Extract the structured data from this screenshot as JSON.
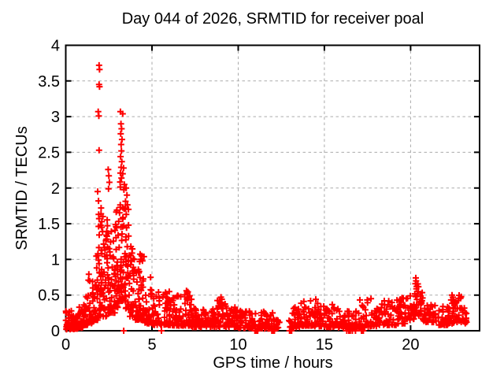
{
  "chart_data": {
    "type": "scatter",
    "title": "Day 044 of 2026, SRMTID for receiver poal",
    "xlabel": "GPS time / hours",
    "ylabel": "SRMTID / TECUs",
    "xlim": [
      0,
      24
    ],
    "ylim": [
      0,
      4
    ],
    "xticks": [
      0,
      5,
      10,
      15,
      20
    ],
    "yticks": [
      0,
      0.5,
      1,
      1.5,
      2,
      2.5,
      3,
      3.5,
      4
    ],
    "grid": "dashed",
    "legend_position": "none",
    "marker": "plus",
    "marker_color": "#ff0000",
    "grid_color": "#ababab",
    "axis_color": "#000000",
    "background_color": "#ffffff",
    "outlier_points": [
      [
        1.93,
        3.72
      ],
      [
        1.96,
        3.66
      ],
      [
        1.93,
        3.45
      ],
      [
        1.96,
        3.42
      ],
      [
        1.88,
        3.07
      ],
      [
        1.92,
        3.01
      ],
      [
        1.93,
        2.53
      ],
      [
        1.85,
        1.95
      ],
      [
        1.9,
        1.82
      ],
      [
        2.05,
        1.72
      ],
      [
        2.15,
        1.6
      ],
      [
        2.46,
        2.26
      ],
      [
        2.5,
        2.17
      ],
      [
        2.53,
        2.08
      ],
      [
        2.48,
        1.99
      ],
      [
        3.17,
        3.07
      ],
      [
        3.3,
        3.04
      ],
      [
        3.2,
        2.9
      ],
      [
        3.24,
        2.83
      ],
      [
        3.19,
        2.76
      ],
      [
        3.26,
        2.68
      ],
      [
        3.21,
        2.61
      ],
      [
        3.23,
        2.52
      ],
      [
        3.18,
        2.44
      ],
      [
        3.25,
        2.37
      ],
      [
        3.21,
        2.29
      ],
      [
        3.17,
        2.21
      ],
      [
        3.23,
        2.14
      ],
      [
        3.3,
        2.2
      ],
      [
        3.35,
        2.28
      ],
      [
        3.4,
        2.05
      ],
      [
        3.5,
        2.0
      ],
      [
        3.55,
        1.9
      ],
      [
        4.35,
        1.0
      ],
      [
        4.4,
        1.05
      ],
      [
        4.45,
        0.98
      ],
      [
        5.8,
        0.52
      ],
      [
        6.0,
        0.55
      ],
      [
        6.45,
        0.48
      ],
      [
        7.0,
        0.56
      ],
      [
        7.05,
        0.52
      ],
      [
        8.9,
        0.42
      ],
      [
        9.0,
        0.47
      ],
      [
        9.05,
        0.44
      ],
      [
        14.5,
        0.44
      ],
      [
        17.7,
        0.45
      ],
      [
        19.4,
        0.44
      ],
      [
        19.5,
        0.46
      ],
      [
        20.28,
        0.66
      ],
      [
        20.3,
        0.74
      ],
      [
        20.32,
        0.7
      ],
      [
        20.35,
        0.62
      ],
      [
        22.4,
        0.5
      ],
      [
        22.45,
        0.47
      ],
      [
        0.02,
        0.25
      ]
    ],
    "zero_value_times": [
      3.36,
      5.55,
      10.97,
      11.02,
      11.08,
      11.13,
      11.95,
      12.0,
      12.05,
      12.1,
      12.98,
      13.04,
      13.1,
      16.3,
      16.42,
      16.5,
      16.62,
      16.8,
      17.15,
      17.2,
      17.26
    ],
    "density_bands_format": "[x_start, x_end, point_count, y_min, y_max, skew_toward_min]",
    "density_bands": [
      [
        0.0,
        0.35,
        28,
        0.02,
        0.28,
        2.2
      ],
      [
        0.35,
        0.7,
        30,
        0.02,
        0.22,
        2.0
      ],
      [
        0.7,
        1.0,
        26,
        0.04,
        0.35,
        2.0
      ],
      [
        1.0,
        1.3,
        26,
        0.08,
        0.5,
        2.0
      ],
      [
        1.3,
        1.6,
        26,
        0.1,
        0.8,
        2.0
      ],
      [
        1.6,
        1.9,
        30,
        0.15,
        1.1,
        1.9
      ],
      [
        1.9,
        2.1,
        36,
        0.2,
        1.65,
        1.5
      ],
      [
        2.1,
        2.4,
        30,
        0.2,
        1.4,
        1.8
      ],
      [
        2.4,
        2.6,
        26,
        0.25,
        1.6,
        1.7
      ],
      [
        2.6,
        2.9,
        30,
        0.25,
        1.5,
        1.8
      ],
      [
        2.9,
        3.15,
        30,
        0.3,
        1.75,
        1.6
      ],
      [
        3.15,
        3.45,
        42,
        0.4,
        2.1,
        1.3
      ],
      [
        3.45,
        3.7,
        32,
        0.3,
        1.9,
        1.6
      ],
      [
        3.7,
        4.0,
        30,
        0.2,
        1.2,
        1.8
      ],
      [
        4.0,
        4.3,
        28,
        0.15,
        1.0,
        1.8
      ],
      [
        4.3,
        4.55,
        24,
        0.15,
        1.08,
        1.6
      ],
      [
        4.55,
        5.0,
        34,
        0.1,
        0.75,
        2.0
      ],
      [
        5.0,
        5.5,
        32,
        0.08,
        0.55,
        2.0
      ],
      [
        5.5,
        6.1,
        38,
        0.08,
        0.57,
        2.0
      ],
      [
        6.1,
        6.7,
        38,
        0.07,
        0.5,
        2.0
      ],
      [
        6.7,
        7.3,
        38,
        0.07,
        0.57,
        2.0
      ],
      [
        7.3,
        8.0,
        42,
        0.05,
        0.32,
        1.8
      ],
      [
        8.0,
        8.7,
        42,
        0.05,
        0.3,
        1.8
      ],
      [
        8.7,
        9.3,
        38,
        0.05,
        0.47,
        2.0
      ],
      [
        9.3,
        10.0,
        42,
        0.05,
        0.33,
        1.8
      ],
      [
        10.0,
        10.8,
        44,
        0.04,
        0.3,
        1.8
      ],
      [
        10.8,
        11.5,
        32,
        0.03,
        0.27,
        1.9
      ],
      [
        11.5,
        12.1,
        28,
        0.03,
        0.25,
        1.9
      ],
      [
        12.1,
        12.4,
        12,
        0.03,
        0.16,
        1.8
      ],
      [
        12.95,
        13.6,
        32,
        0.05,
        0.35,
        1.9
      ],
      [
        13.6,
        14.3,
        38,
        0.07,
        0.42,
        1.9
      ],
      [
        14.3,
        15.0,
        38,
        0.06,
        0.4,
        1.9
      ],
      [
        15.0,
        15.7,
        36,
        0.05,
        0.37,
        1.9
      ],
      [
        15.7,
        16.3,
        32,
        0.04,
        0.33,
        1.9
      ],
      [
        16.3,
        16.9,
        28,
        0.03,
        0.3,
        1.9
      ],
      [
        16.9,
        17.6,
        30,
        0.05,
        0.45,
        2.0
      ],
      [
        17.6,
        18.3,
        30,
        0.06,
        0.35,
        1.9
      ],
      [
        18.3,
        19.2,
        36,
        0.08,
        0.42,
        1.9
      ],
      [
        19.2,
        19.9,
        34,
        0.1,
        0.47,
        1.8
      ],
      [
        19.9,
        20.2,
        20,
        0.15,
        0.5,
        1.6
      ],
      [
        20.2,
        20.7,
        30,
        0.2,
        0.66,
        1.4
      ],
      [
        20.7,
        21.5,
        36,
        0.12,
        0.45,
        1.7
      ],
      [
        21.5,
        22.2,
        30,
        0.08,
        0.35,
        1.8
      ],
      [
        22.2,
        22.6,
        24,
        0.1,
        0.48,
        1.6
      ],
      [
        22.6,
        23.0,
        24,
        0.12,
        0.5,
        1.7
      ],
      [
        23.0,
        23.25,
        14,
        0.1,
        0.32,
        1.7
      ]
    ]
  }
}
